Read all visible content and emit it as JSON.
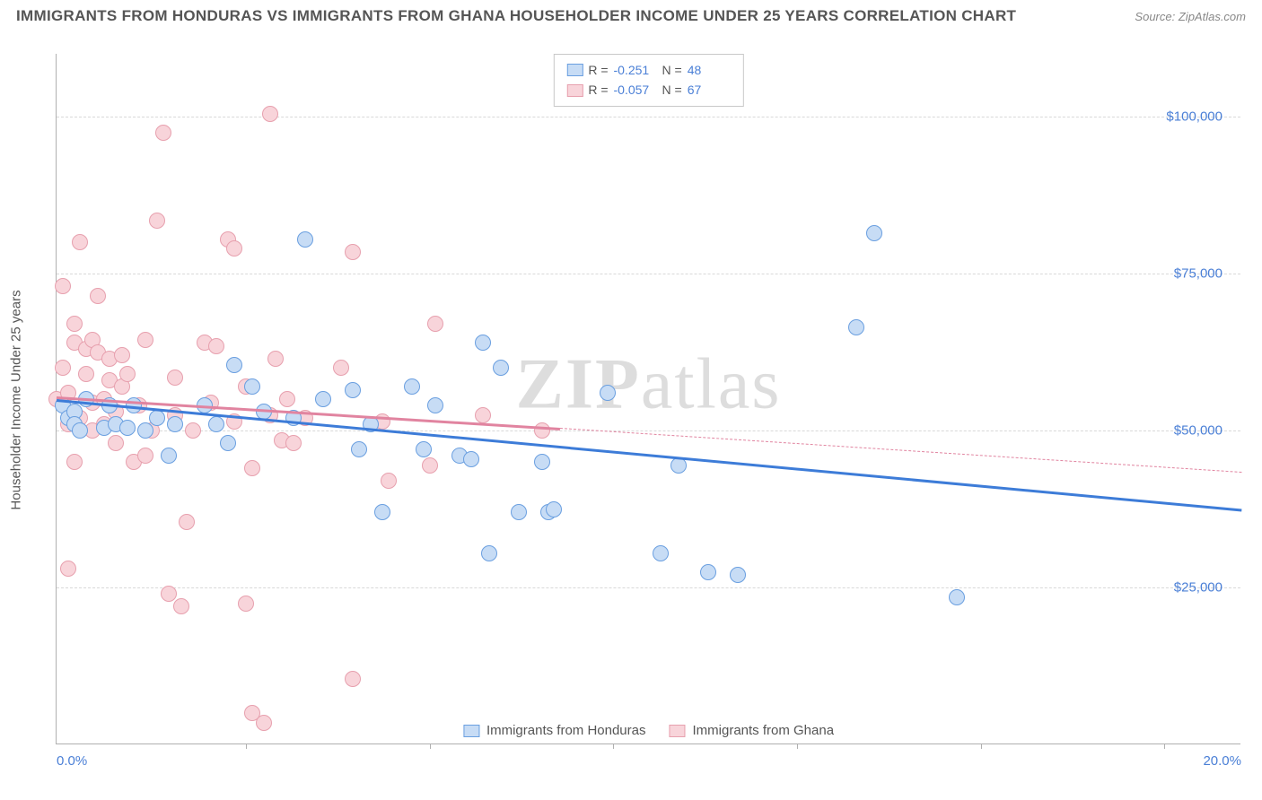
{
  "header": {
    "title": "IMMIGRANTS FROM HONDURAS VS IMMIGRANTS FROM GHANA HOUSEHOLDER INCOME UNDER 25 YEARS CORRELATION CHART",
    "source_prefix": "Source:",
    "source_name": "ZipAtlas.com"
  },
  "watermark": {
    "part1": "ZIP",
    "part2": "atlas"
  },
  "chart": {
    "type": "scatter",
    "xlim": [
      0,
      20
    ],
    "ylim": [
      0,
      110000
    ],
    "ylabel": "Householder Income Under 25 years",
    "xticks": [
      {
        "v": 0,
        "label": "0.0%"
      },
      {
        "v": 20,
        "label": "20.0%"
      }
    ],
    "xminor": [
      3.2,
      6.3,
      9.4,
      12.5,
      15.6,
      18.7
    ],
    "yticks": [
      {
        "v": 25000,
        "label": "$25,000"
      },
      {
        "v": 50000,
        "label": "$50,000"
      },
      {
        "v": 75000,
        "label": "$75,000"
      },
      {
        "v": 100000,
        "label": "$100,000"
      }
    ],
    "series": [
      {
        "name": "Immigrants from Honduras",
        "fill": "#c7dcf5",
        "stroke": "#6a9fe0",
        "line_color": "#3d7cd8",
        "R": "-0.251",
        "N": "48",
        "trend": {
          "x1": 0,
          "y1": 55000,
          "x2": 20,
          "y2": 37500,
          "dash": false
        },
        "points": [
          [
            0.1,
            54000
          ],
          [
            0.2,
            52000
          ],
          [
            0.3,
            53000
          ],
          [
            0.3,
            51000
          ],
          [
            0.4,
            50000
          ],
          [
            0.5,
            55000
          ],
          [
            0.8,
            50500
          ],
          [
            0.9,
            54000
          ],
          [
            1.0,
            51000
          ],
          [
            1.2,
            50500
          ],
          [
            1.3,
            54000
          ],
          [
            1.5,
            50000
          ],
          [
            1.7,
            52000
          ],
          [
            1.9,
            46000
          ],
          [
            2.0,
            51000
          ],
          [
            2.5,
            54000
          ],
          [
            2.7,
            51000
          ],
          [
            2.9,
            48000
          ],
          [
            3.0,
            60500
          ],
          [
            3.3,
            57000
          ],
          [
            3.5,
            53000
          ],
          [
            4.0,
            52000
          ],
          [
            4.2,
            80500
          ],
          [
            4.5,
            55000
          ],
          [
            5.0,
            56500
          ],
          [
            5.1,
            47000
          ],
          [
            5.3,
            51000
          ],
          [
            5.5,
            37000
          ],
          [
            6.0,
            57000
          ],
          [
            6.2,
            47000
          ],
          [
            6.4,
            54000
          ],
          [
            6.8,
            46000
          ],
          [
            7.0,
            45500
          ],
          [
            7.2,
            64000
          ],
          [
            7.3,
            30500
          ],
          [
            7.5,
            60000
          ],
          [
            7.8,
            37000
          ],
          [
            8.2,
            45000
          ],
          [
            8.3,
            37000
          ],
          [
            8.4,
            37500
          ],
          [
            9.3,
            56000
          ],
          [
            10.2,
            30500
          ],
          [
            10.5,
            44500
          ],
          [
            11.0,
            27500
          ],
          [
            11.5,
            27000
          ],
          [
            13.5,
            66500
          ],
          [
            13.8,
            81500
          ],
          [
            15.2,
            23500
          ]
        ]
      },
      {
        "name": "Immigrants from Ghana",
        "fill": "#f8d4da",
        "stroke": "#e7a0ae",
        "line_color": "#e184a0",
        "R": "-0.057",
        "N": "67",
        "trend_solid": {
          "x1": 0,
          "y1": 55500,
          "x2": 8.5,
          "y2": 50500,
          "dash": false
        },
        "trend_dash": {
          "x1": 8.5,
          "y1": 50500,
          "x2": 20,
          "y2": 43500,
          "dash": true
        },
        "points": [
          [
            0.0,
            55000
          ],
          [
            0.1,
            73000
          ],
          [
            0.1,
            60000
          ],
          [
            0.2,
            51000
          ],
          [
            0.2,
            56000
          ],
          [
            0.2,
            28000
          ],
          [
            0.3,
            45000
          ],
          [
            0.3,
            64000
          ],
          [
            0.3,
            67000
          ],
          [
            0.4,
            80000
          ],
          [
            0.4,
            52000
          ],
          [
            0.5,
            59000
          ],
          [
            0.5,
            63000
          ],
          [
            0.6,
            50000
          ],
          [
            0.6,
            54500
          ],
          [
            0.6,
            64500
          ],
          [
            0.7,
            71500
          ],
          [
            0.7,
            62500
          ],
          [
            0.8,
            55000
          ],
          [
            0.8,
            51000
          ],
          [
            0.9,
            61500
          ],
          [
            0.9,
            58000
          ],
          [
            1.0,
            48000
          ],
          [
            1.0,
            53000
          ],
          [
            1.1,
            57000
          ],
          [
            1.1,
            62000
          ],
          [
            1.2,
            59000
          ],
          [
            1.3,
            45000
          ],
          [
            1.4,
            54000
          ],
          [
            1.5,
            46000
          ],
          [
            1.5,
            64500
          ],
          [
            1.6,
            50000
          ],
          [
            1.7,
            83500
          ],
          [
            1.8,
            97500
          ],
          [
            1.9,
            24000
          ],
          [
            2.0,
            52500
          ],
          [
            2.0,
            58500
          ],
          [
            2.1,
            22000
          ],
          [
            2.2,
            35500
          ],
          [
            2.3,
            50000
          ],
          [
            2.5,
            64000
          ],
          [
            2.6,
            54500
          ],
          [
            2.7,
            63500
          ],
          [
            2.9,
            80500
          ],
          [
            3.0,
            51500
          ],
          [
            3.0,
            79000
          ],
          [
            3.2,
            22500
          ],
          [
            3.2,
            57000
          ],
          [
            3.3,
            44000
          ],
          [
            3.3,
            5000
          ],
          [
            3.5,
            3500
          ],
          [
            3.6,
            52500
          ],
          [
            3.6,
            100500
          ],
          [
            3.7,
            61500
          ],
          [
            3.8,
            48500
          ],
          [
            3.9,
            55000
          ],
          [
            4.0,
            48000
          ],
          [
            4.2,
            52000
          ],
          [
            4.8,
            60000
          ],
          [
            5.0,
            78500
          ],
          [
            5.0,
            10500
          ],
          [
            5.5,
            51500
          ],
          [
            5.6,
            42000
          ],
          [
            6.3,
            44500
          ],
          [
            6.4,
            67000
          ],
          [
            7.2,
            52500
          ],
          [
            8.2,
            50000
          ]
        ]
      }
    ],
    "background_color": "#ffffff",
    "grid_color": "#d8d8d8",
    "axis_label_color": "#4a7fd6",
    "title_fontsize": 17,
    "tick_fontsize": 15,
    "marker_size": 18
  },
  "legend": {
    "R_label": "R =",
    "N_label": "N ="
  }
}
